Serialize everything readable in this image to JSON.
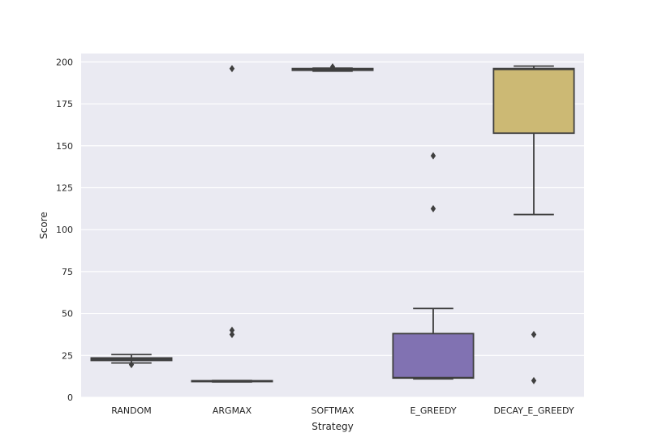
{
  "chart_data": {
    "type": "box",
    "xlabel": "Strategy",
    "ylabel": "Score",
    "ylim": [
      0,
      205
    ],
    "yticks": [
      0,
      25,
      50,
      75,
      100,
      125,
      150,
      175,
      200
    ],
    "grid": true,
    "categories": [
      "RANDOM",
      "ARGMAX",
      "SOFTMAX",
      "E_GREEDY",
      "DECAY_E_GREEDY"
    ],
    "boxes": [
      {
        "category": "RANDOM",
        "whisker_low": 20.5,
        "q1": 22.0,
        "median": 22.8,
        "q3": 23.5,
        "whisker_high": 25.5,
        "outliers": [
          19.5
        ],
        "color": "#4c72b0"
      },
      {
        "category": "ARGMAX",
        "whisker_low": 9.2,
        "q1": 9.4,
        "median": 9.6,
        "q3": 9.9,
        "whisker_high": 10.0,
        "outliers": [
          196,
          40,
          37.5
        ],
        "color": "#55a868"
      },
      {
        "category": "SOFTMAX",
        "whisker_low": 194.5,
        "q1": 195.0,
        "median": 195.5,
        "q3": 196.0,
        "whisker_high": 196.3,
        "outliers": [
          197
        ],
        "color": "#c44e52"
      },
      {
        "category": "E_GREEDY",
        "whisker_low": 11.0,
        "q1": 11.5,
        "median": 11.8,
        "q3": 38.0,
        "whisker_high": 53.0,
        "outliers": [
          144,
          112.5
        ],
        "color": "#8172b2"
      },
      {
        "category": "DECAY_E_GREEDY",
        "whisker_low": 109,
        "q1": 157.5,
        "median": 195.5,
        "q3": 196.0,
        "whisker_high": 197.5,
        "outliers": [
          37.5,
          10
        ],
        "color": "#ccb974"
      }
    ]
  }
}
